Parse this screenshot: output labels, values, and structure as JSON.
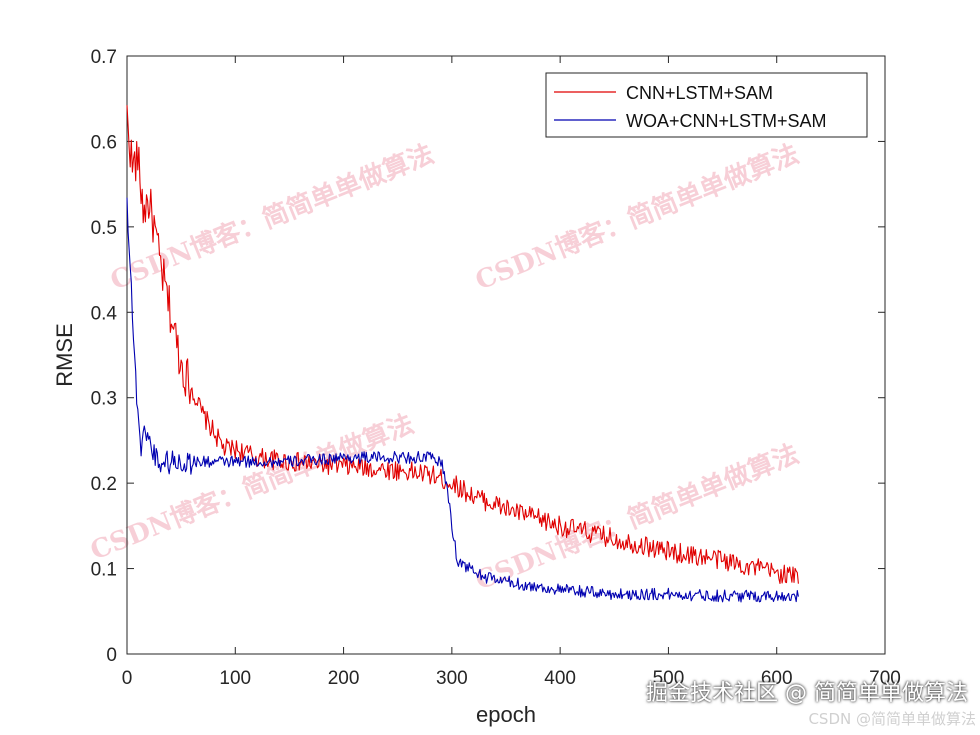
{
  "chart_data": {
    "type": "line",
    "title": "",
    "xlabel": "epoch",
    "ylabel": "RMSE",
    "xlim": [
      0,
      700
    ],
    "ylim": [
      0,
      0.7
    ],
    "xticks": [
      0,
      100,
      200,
      300,
      400,
      500,
      600,
      700
    ],
    "yticks": [
      0,
      0.1,
      0.2,
      0.3,
      0.4,
      0.5,
      0.6,
      0.7
    ],
    "x_tick_labels": [
      "0",
      "100",
      "200",
      "300",
      "400",
      "500",
      "600",
      "700"
    ],
    "y_tick_labels": [
      "0",
      "0.1",
      "0.2",
      "0.3",
      "0.4",
      "0.5",
      "0.6",
      "0.7"
    ],
    "grid": false,
    "legend_position": "top-right",
    "series": [
      {
        "name": "CNN+LSTM+SAM",
        "color": "#e00000",
        "x": [
          0,
          5,
          10,
          15,
          20,
          25,
          30,
          40,
          50,
          60,
          70,
          80,
          90,
          100,
          120,
          150,
          200,
          250,
          280,
          300,
          320,
          350,
          400,
          450,
          500,
          550,
          600,
          620
        ],
        "y": [
          0.63,
          0.57,
          0.58,
          0.52,
          0.53,
          0.5,
          0.46,
          0.4,
          0.34,
          0.31,
          0.28,
          0.26,
          0.24,
          0.24,
          0.23,
          0.225,
          0.22,
          0.215,
          0.21,
          0.2,
          0.185,
          0.17,
          0.15,
          0.135,
          0.12,
          0.11,
          0.095,
          0.09
        ]
      },
      {
        "name": "WOA+CNN+LSTM+SAM",
        "color": "#0000b0",
        "x": [
          0,
          3,
          6,
          8,
          10,
          13,
          15,
          18,
          20,
          25,
          30,
          50,
          100,
          150,
          200,
          250,
          280,
          290,
          295,
          300,
          305,
          310,
          330,
          350,
          370,
          400,
          450,
          500,
          550,
          600,
          620
        ],
        "y": [
          0.53,
          0.46,
          0.37,
          0.32,
          0.29,
          0.24,
          0.25,
          0.265,
          0.25,
          0.235,
          0.225,
          0.225,
          0.225,
          0.225,
          0.23,
          0.23,
          0.23,
          0.225,
          0.2,
          0.15,
          0.11,
          0.105,
          0.09,
          0.085,
          0.08,
          0.075,
          0.07,
          0.07,
          0.068,
          0.068,
          0.068
        ]
      }
    ]
  },
  "watermarks": {
    "overlay_text": "CSDN博客：简简单单做算法",
    "corner_main": "掘金技术社区 @ 简简单单做算法",
    "corner_sub": "CSDN @简简单单做算法"
  }
}
